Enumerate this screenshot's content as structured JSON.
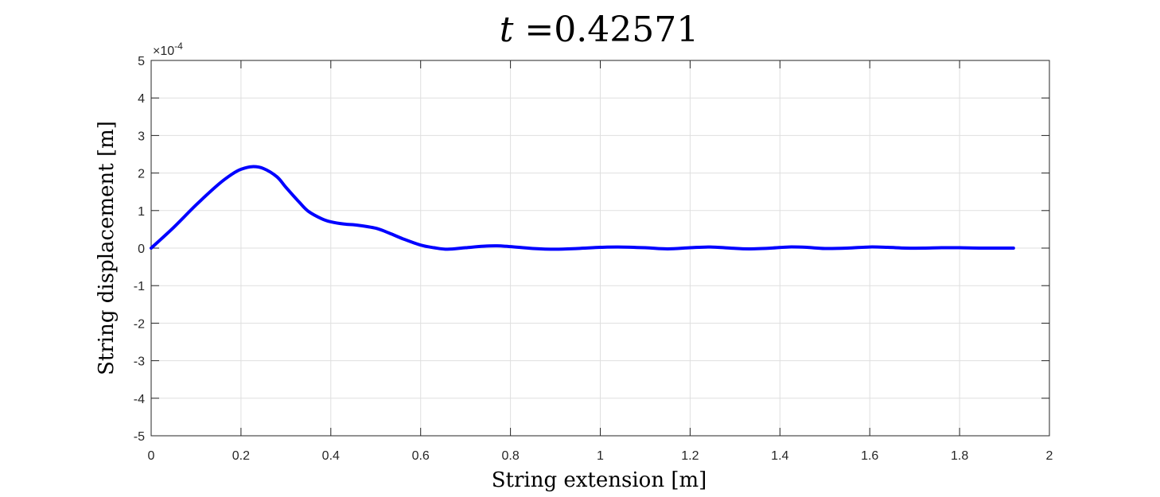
{
  "chart_data": {
    "type": "line",
    "title_var": "t",
    "title_eq": "=",
    "title_value": "0.42571",
    "xlabel": "String extension [m]",
    "ylabel": "String displacement [m]",
    "y_exponent_base": "×10",
    "y_exponent_power": "-4",
    "xlim": [
      0,
      2
    ],
    "ylim": [
      -5,
      5
    ],
    "x_ticks": [
      0,
      0.2,
      0.4,
      0.6,
      0.8,
      1,
      1.2,
      1.4,
      1.6,
      1.8,
      2
    ],
    "x_tick_labels": [
      "0",
      "0.2",
      "0.4",
      "0.6",
      "0.8",
      "1",
      "1.2",
      "1.4",
      "1.6",
      "1.8",
      "2"
    ],
    "y_ticks": [
      -5,
      -4,
      -3,
      -2,
      -1,
      0,
      1,
      2,
      3,
      4,
      5
    ],
    "y_tick_labels": [
      "-5",
      "-4",
      "-3",
      "-2",
      "-1",
      "0",
      "1",
      "2",
      "3",
      "4",
      "5"
    ],
    "grid": true,
    "line_color": "#0000ff",
    "series": [
      {
        "x": [
          0,
          0.05,
          0.1,
          0.15,
          0.18,
          0.2,
          0.225,
          0.25,
          0.28,
          0.3,
          0.33,
          0.35,
          0.38,
          0.4,
          0.43,
          0.46,
          0.5,
          0.53,
          0.56,
          0.6,
          0.63,
          0.66,
          0.7,
          0.74,
          0.77,
          0.8,
          0.85,
          0.9,
          0.95,
          1.0,
          1.04,
          1.1,
          1.15,
          1.2,
          1.245,
          1.29,
          1.33,
          1.38,
          1.42,
          1.46,
          1.5,
          1.55,
          1.6,
          1.64,
          1.68,
          1.72,
          1.76,
          1.8,
          1.85,
          1.92
        ],
        "y": [
          0.0,
          0.55,
          1.15,
          1.7,
          1.97,
          2.1,
          2.17,
          2.12,
          1.9,
          1.62,
          1.22,
          0.98,
          0.78,
          0.7,
          0.64,
          0.61,
          0.53,
          0.4,
          0.25,
          0.08,
          0.01,
          -0.03,
          0.01,
          0.05,
          0.06,
          0.04,
          -0.01,
          -0.03,
          -0.01,
          0.02,
          0.03,
          0.01,
          -0.02,
          0.01,
          0.03,
          0.0,
          -0.02,
          0.0,
          0.03,
          0.02,
          -0.01,
          0.0,
          0.03,
          0.02,
          0.0,
          0.0,
          0.01,
          0.01,
          0.0,
          0.0
        ]
      }
    ]
  }
}
